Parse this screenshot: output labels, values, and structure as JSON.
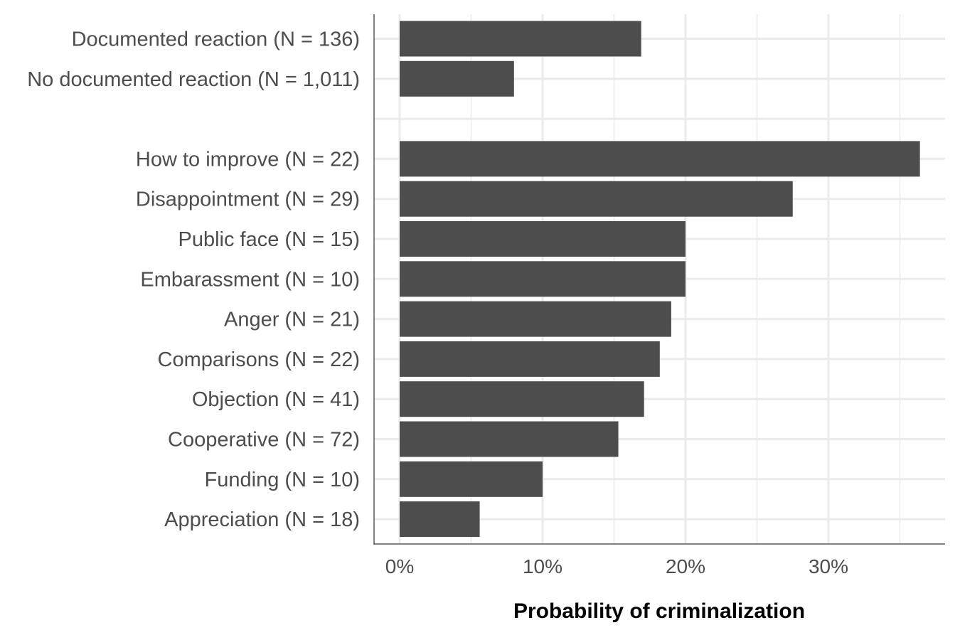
{
  "chart_data": {
    "type": "bar",
    "orientation": "horizontal",
    "xlabel": "Probability of criminalization",
    "ylabel": "",
    "xlim": [
      0,
      0.38
    ],
    "x_ticks": [
      0,
      0.1,
      0.2,
      0.3
    ],
    "x_tick_labels": [
      "0%",
      "10%",
      "20%",
      "30%"
    ],
    "grid": true,
    "bar_color": "#4d4d4d",
    "categories": [
      "Documented reaction (N = 136)",
      "No documented reaction (N = 1,011)",
      "",
      "How to improve (N = 22)",
      "Disappointment (N = 29)",
      "Public face (N = 15)",
      "Embarassment (N = 10)",
      "Anger (N = 21)",
      "Comparisons (N = 22)",
      "Objection (N = 41)",
      "Cooperative (N = 72)",
      "Funding (N = 10)",
      "Appreciation (N = 18)"
    ],
    "values": [
      0.169,
      0.08,
      null,
      0.364,
      0.275,
      0.2,
      0.2,
      0.19,
      0.182,
      0.171,
      0.153,
      0.1,
      0.056
    ]
  }
}
